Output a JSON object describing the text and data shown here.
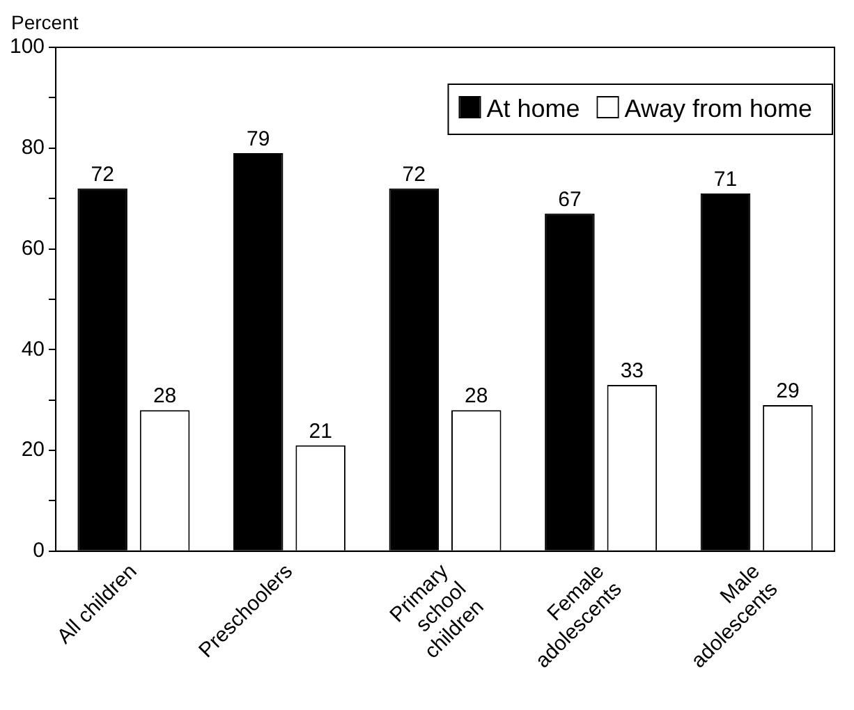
{
  "chart_data": {
    "type": "bar",
    "ylabel": "Percent",
    "categories": [
      "All children",
      "Preschoolers",
      "Primary\nschool\nchildren",
      "Female\nadolescents",
      "Male\nadolescents"
    ],
    "series": [
      {
        "name": "At home",
        "color": "#000000",
        "values": [
          72,
          79,
          72,
          67,
          71
        ]
      },
      {
        "name": "Away from home",
        "color": "#ffffff",
        "values": [
          28,
          21,
          28,
          33,
          29
        ]
      }
    ],
    "ylim": [
      0,
      100
    ],
    "yticks": [
      0,
      {
        "value": 10,
        "label": null
      },
      20,
      {
        "value": 30,
        "label": null
      },
      40,
      {
        "value": 50,
        "label": null
      },
      60,
      {
        "value": 70,
        "label": null
      },
      80,
      {
        "value": 90,
        "label": null
      },
      100
    ],
    "data_labels": true,
    "legend": "top right",
    "grid": false
  }
}
